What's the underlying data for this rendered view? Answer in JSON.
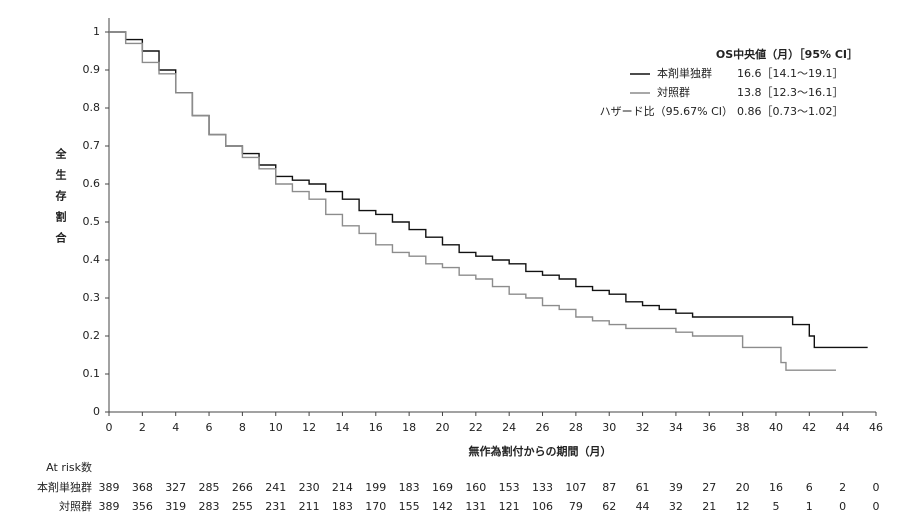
{
  "chart_data": {
    "type": "line",
    "step": true,
    "x_label": "無作為割付からの期間（月）",
    "y_label": "全生存割合",
    "xlim": [
      0,
      46
    ],
    "xticks": [
      0,
      2,
      4,
      6,
      8,
      10,
      12,
      14,
      16,
      18,
      20,
      22,
      24,
      26,
      28,
      30,
      32,
      34,
      36,
      38,
      40,
      42,
      44,
      46
    ],
    "ylim": [
      0,
      1
    ],
    "yticks": [
      0,
      0.1,
      0.2,
      0.3,
      0.4,
      0.5,
      0.6,
      0.7,
      0.8,
      0.9,
      1
    ],
    "legend_title": "OS中央値（月）［95% CI］",
    "series": [
      {
        "name": "本剤単独群",
        "color": "#111111",
        "legend_text": "16.6［14.1～19.1］",
        "x": [
          0,
          1,
          2,
          3,
          4,
          5,
          6,
          7,
          8,
          9,
          10,
          11,
          12,
          13,
          14,
          15,
          16,
          17,
          18,
          19,
          20,
          21,
          22,
          23,
          24,
          25,
          26,
          27,
          28,
          29,
          30,
          31,
          32,
          33,
          34,
          35,
          40,
          41,
          42,
          42.3,
          45.5
        ],
        "values": [
          1,
          0.98,
          0.95,
          0.9,
          0.84,
          0.78,
          0.73,
          0.7,
          0.68,
          0.65,
          0.62,
          0.61,
          0.6,
          0.58,
          0.56,
          0.53,
          0.52,
          0.5,
          0.48,
          0.46,
          0.44,
          0.42,
          0.41,
          0.4,
          0.39,
          0.37,
          0.36,
          0.35,
          0.33,
          0.32,
          0.31,
          0.29,
          0.28,
          0.27,
          0.26,
          0.25,
          0.25,
          0.23,
          0.2,
          0.17,
          0.17
        ]
      },
      {
        "name": "対照群",
        "color": "#8c8c8c",
        "legend_text": "13.8［12.3～16.1］",
        "x": [
          0,
          1,
          2,
          3,
          4,
          5,
          6,
          7,
          8,
          9,
          10,
          11,
          12,
          13,
          14,
          15,
          16,
          17,
          18,
          19,
          20,
          21,
          22,
          23,
          24,
          25,
          26,
          27,
          28,
          29,
          30,
          31,
          34,
          35,
          38,
          40.3,
          40.6,
          43.6
        ],
        "values": [
          1,
          0.97,
          0.92,
          0.89,
          0.84,
          0.78,
          0.73,
          0.7,
          0.67,
          0.64,
          0.6,
          0.58,
          0.56,
          0.52,
          0.49,
          0.47,
          0.44,
          0.42,
          0.41,
          0.39,
          0.38,
          0.36,
          0.35,
          0.33,
          0.31,
          0.3,
          0.28,
          0.27,
          0.25,
          0.24,
          0.23,
          0.22,
          0.21,
          0.2,
          0.17,
          0.13,
          0.11,
          0.11
        ]
      }
    ],
    "hazard_label": "ハザード比（95.67% CI）",
    "hazard_value": "0.86［0.73～1.02］",
    "risk_table": {
      "title": "At risk数",
      "rows": [
        {
          "values": [
            389,
            368,
            327,
            285,
            266,
            241,
            230,
            214,
            199,
            183,
            169,
            160,
            153,
            133,
            107,
            87,
            61,
            39,
            27,
            20,
            16,
            6,
            2,
            0
          ]
        },
        {
          "values": [
            389,
            356,
            319,
            283,
            255,
            231,
            211,
            183,
            170,
            155,
            142,
            131,
            121,
            106,
            79,
            62,
            44,
            32,
            21,
            12,
            5,
            1,
            0,
            0
          ]
        }
      ]
    }
  }
}
